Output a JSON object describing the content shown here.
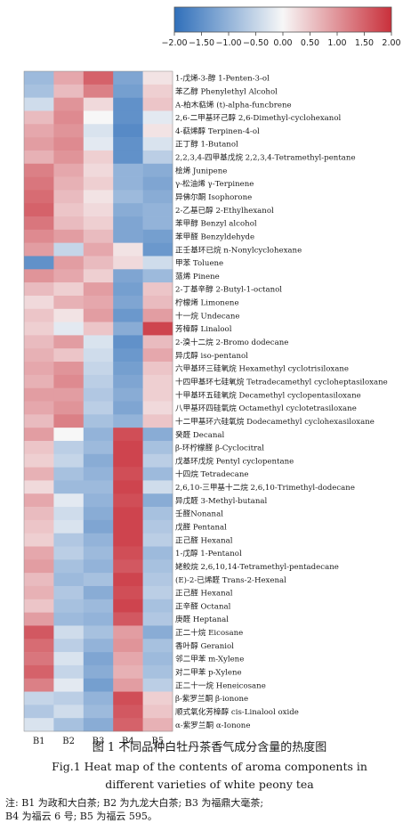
{
  "chart_data": {
    "type": "heatmap",
    "columns": [
      "B1",
      "B2",
      "B3",
      "B4",
      "B5"
    ],
    "colorbar": {
      "min": -2.0,
      "max": 2.0,
      "ticks": [
        "−2.00",
        "−1.50",
        "−1.00",
        "−0.50",
        "0.00",
        "0.50",
        "1.00",
        "1.50",
        "2.00"
      ],
      "colors": [
        "#2f6fba",
        "#f7f7f7",
        "#c9303b"
      ]
    },
    "rows": [
      {
        "label": "1-戊烯-3-醇 1-Penten-3-ol",
        "values": [
          -0.9,
          0.8,
          1.5,
          -1.2,
          0.2
        ]
      },
      {
        "label": "苯乙醇 Phenylethyl Alcohol",
        "values": [
          -0.8,
          0.6,
          1.2,
          -1.3,
          0.4
        ]
      },
      {
        "label": "Α-柏木萜烯 (t)-alpha-funcbrene",
        "values": [
          -0.4,
          1.0,
          0.3,
          -1.5,
          0.5
        ]
      },
      {
        "label": "2,6-二甲基环己醇 2,6-Dimethyl-cyclohexanol",
        "values": [
          0.6,
          1.1,
          0.0,
          -1.5,
          -0.2
        ]
      },
      {
        "label": "4-萜烯醇 Terpinen-4-ol",
        "values": [
          0.8,
          1.0,
          -0.3,
          -1.6,
          0.2
        ]
      },
      {
        "label": "正丁醇 1-Butanol",
        "values": [
          0.9,
          1.1,
          -0.2,
          -1.5,
          -0.3
        ]
      },
      {
        "label": "2,2,3,4-四甲基戊烷 2,2,3,4-Tetramethyl-pentane",
        "values": [
          0.7,
          1.0,
          0.4,
          -1.5,
          -0.6
        ]
      },
      {
        "label": "桧烯 Junipene",
        "values": [
          1.2,
          0.8,
          0.3,
          -1.0,
          -1.1
        ]
      },
      {
        "label": "γ-松油烯 γ-Terpinene",
        "values": [
          1.3,
          0.7,
          0.4,
          -1.0,
          -1.2
        ]
      },
      {
        "label": "异佛尔酮 Isophorone",
        "values": [
          1.4,
          0.6,
          0.2,
          -0.9,
          -1.1
        ]
      },
      {
        "label": "2-乙基已醇 2-Ethylhexanol",
        "values": [
          1.5,
          0.5,
          0.3,
          -1.1,
          -1.0
        ]
      },
      {
        "label": "苯甲醇 Benzyl alcohol",
        "values": [
          1.3,
          0.6,
          0.4,
          -1.2,
          -1.0
        ]
      },
      {
        "label": "苯甲醛 Benzyldehyde",
        "values": [
          1.1,
          0.9,
          0.6,
          -1.2,
          -1.3
        ]
      },
      {
        "label": "正壬基环已烷 n-Nonylcyclohexane",
        "values": [
          0.9,
          -0.5,
          0.8,
          0.2,
          -1.4
        ]
      },
      {
        "label": "甲苯 Toluene",
        "values": [
          -1.5,
          0.9,
          0.6,
          0.3,
          -0.4
        ]
      },
      {
        "label": "蒎烯 Pinene",
        "values": [
          1.0,
          0.8,
          0.4,
          -1.2,
          -0.9
        ]
      },
      {
        "label": "2-丁基辛醇 2-Butyl-1-octanol",
        "values": [
          0.6,
          0.4,
          0.9,
          -1.3,
          0.5
        ]
      },
      {
        "label": "柠檬烯 Limonene",
        "values": [
          0.3,
          0.7,
          0.8,
          -1.2,
          0.6
        ]
      },
      {
        "label": "十一烷 Undecane",
        "values": [
          0.5,
          0.2,
          0.9,
          -1.4,
          0.9
        ]
      },
      {
        "label": "芳樟醇 Linalool",
        "values": [
          0.4,
          -0.2,
          0.5,
          -1.1,
          1.8
        ]
      },
      {
        "label": "2-溴十二烷 2-Bromo dodecane",
        "values": [
          0.6,
          0.9,
          -0.3,
          -1.5,
          0.6
        ]
      },
      {
        "label": "异戊醇 iso-pentanol",
        "values": [
          0.7,
          0.5,
          -0.4,
          -1.4,
          0.8
        ]
      },
      {
        "label": "六甲基环三硅氧烷 Hexamethyl cyclotrisiloxane",
        "values": [
          0.8,
          1.0,
          -0.5,
          -1.3,
          0.5
        ]
      },
      {
        "label": "十四甲基环七硅氧烷 Tetradecamethyl cycloheptasiloxane",
        "values": [
          0.7,
          1.1,
          -0.6,
          -1.2,
          0.4
        ]
      },
      {
        "label": "十甲基环五硅氧烷 Decamethyl cyclopentasiloxane",
        "values": [
          0.9,
          0.9,
          -0.7,
          -1.1,
          0.4
        ]
      },
      {
        "label": "八甲基环四硅氧烷 Octamethyl cyclotetrasiloxane",
        "values": [
          0.8,
          1.0,
          -0.6,
          -1.2,
          0.3
        ]
      },
      {
        "label": "十二甲基环六硅氧烷 Dodecamethyl cyclohexasiloxane",
        "values": [
          0.6,
          1.2,
          -0.8,
          -1.0,
          0.5
        ]
      },
      {
        "label": "癸醛 Decanal",
        "values": [
          0.9,
          0.0,
          -1.0,
          1.7,
          -1.1
        ]
      },
      {
        "label": "β-环柠檬醛 β-Cyclocitral",
        "values": [
          0.5,
          -0.6,
          -0.9,
          1.8,
          -0.8
        ]
      },
      {
        "label": "戊基环戊烷 Pentyl cyclopentane",
        "values": [
          0.4,
          -0.5,
          -1.1,
          1.8,
          -0.6
        ]
      },
      {
        "label": "十四烷 Tetradecane",
        "values": [
          0.7,
          -0.8,
          -1.0,
          1.7,
          -0.9
        ]
      },
      {
        "label": "2,6,10-三甲基十二烷 2,6,10-Trimethyl-dodecane",
        "values": [
          0.3,
          -0.9,
          -0.9,
          1.8,
          -0.4
        ]
      },
      {
        "label": "异戊醛 3-Methyl-butanal",
        "values": [
          0.8,
          -0.2,
          -1.0,
          1.7,
          -1.1
        ]
      },
      {
        "label": "壬醛Nonanal",
        "values": [
          0.6,
          -0.4,
          -1.1,
          1.8,
          -0.8
        ]
      },
      {
        "label": "戊醛 Pentanal",
        "values": [
          0.5,
          -0.3,
          -1.2,
          1.8,
          -0.7
        ]
      },
      {
        "label": "正己醛 Hexanal",
        "values": [
          0.4,
          -0.7,
          -1.0,
          1.8,
          -0.6
        ]
      },
      {
        "label": "1-戊醇 1-Pentanol",
        "values": [
          0.8,
          -0.6,
          -0.9,
          1.7,
          -0.9
        ]
      },
      {
        "label": "姥鲛烷 2,6,10,14-Tetramethyl-pentadecane",
        "values": [
          0.9,
          -0.8,
          -1.0,
          1.6,
          -0.8
        ]
      },
      {
        "label": "(E)-2-已烯醛 Trans-2-Hexenal",
        "values": [
          0.6,
          -0.9,
          -0.8,
          1.8,
          -0.7
        ]
      },
      {
        "label": "正己醛 Hexanal",
        "values": [
          0.7,
          -0.7,
          -1.1,
          1.7,
          -0.6
        ]
      },
      {
        "label": "正辛醛 Octanal",
        "values": [
          0.5,
          -0.8,
          -0.9,
          1.8,
          -0.8
        ]
      },
      {
        "label": "庚醛 Heptanal",
        "values": [
          0.9,
          -0.9,
          -1.0,
          1.6,
          -0.7
        ]
      },
      {
        "label": "正二十烷 Eicosane",
        "values": [
          1.6,
          -0.4,
          -0.8,
          0.9,
          -1.1
        ]
      },
      {
        "label": "香叶醇 Geraniol",
        "values": [
          1.4,
          -0.6,
          -1.0,
          1.0,
          -0.8
        ]
      },
      {
        "label": "邻二甲苯 m-Xylene",
        "values": [
          1.3,
          -0.3,
          -1.2,
          0.8,
          -0.9
        ]
      },
      {
        "label": "对二甲苯 p-Xylene",
        "values": [
          1.5,
          -0.5,
          -1.1,
          0.7,
          -0.8
        ]
      },
      {
        "label": "正二十一烷 Heneicosane",
        "values": [
          1.2,
          -0.2,
          -1.3,
          0.9,
          -0.6
        ]
      },
      {
        "label": "β-紫罗兰酮 β-ionone",
        "values": [
          -0.5,
          -0.6,
          -1.0,
          1.7,
          0.4
        ]
      },
      {
        "label": "顺式氧化芳樟醇 cis-Linalool oxide",
        "values": [
          -0.7,
          -0.4,
          -0.9,
          1.6,
          0.5
        ]
      },
      {
        "label": "α-紫罗兰酮 α-Ionone",
        "values": [
          -0.3,
          -0.8,
          -1.1,
          1.5,
          0.7
        ]
      }
    ]
  },
  "figure": {
    "caption_cn": "图 1   不同品种白牡丹茶香气成分含量的热度图",
    "caption_en_1": "Fig.1    Heat map of the contents of aroma components in",
    "caption_en_2": "different varieties of white peony tea",
    "note_1": "注: B1 为政和大白茶; B2 为九龙大白茶; B3 为福鼎大毫茶;",
    "note_2": "B4 为福云 6 号; B5 为福云 595。"
  }
}
